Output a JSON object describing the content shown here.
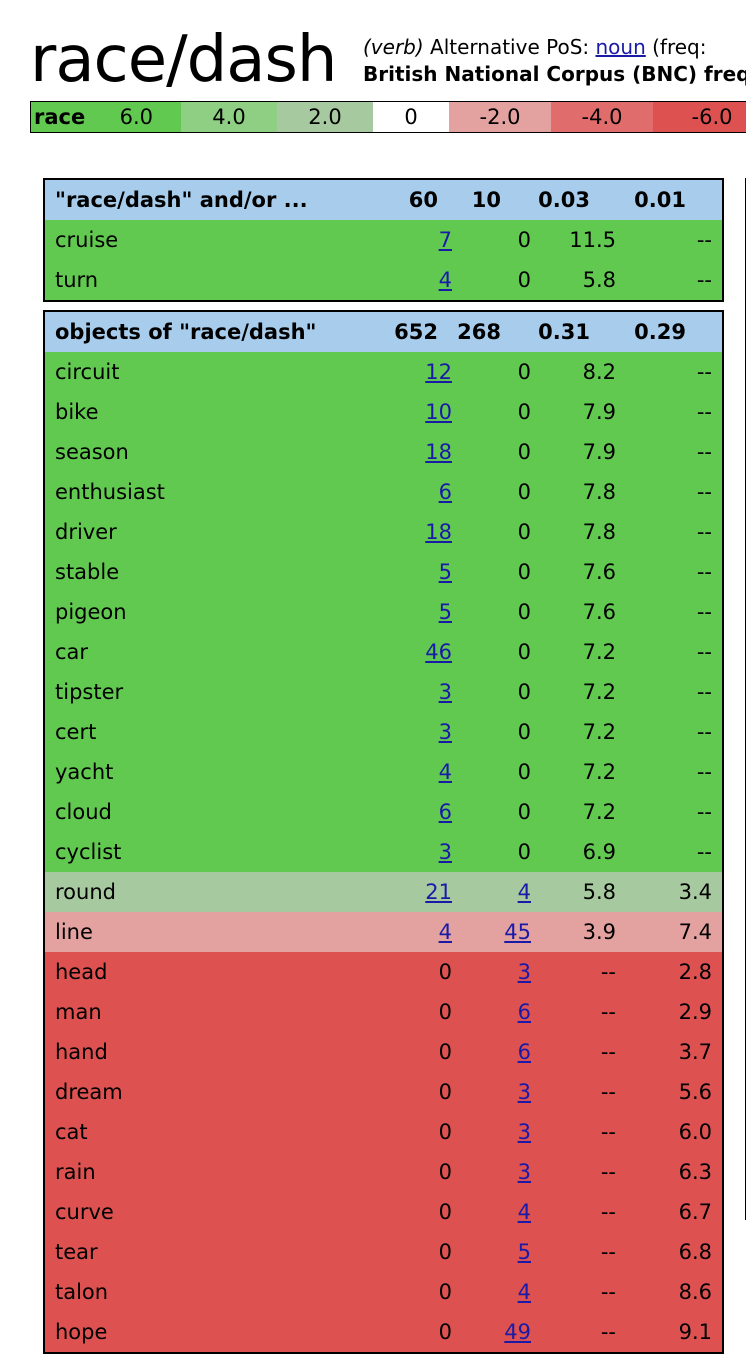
{
  "header": {
    "title": "race/dash",
    "pos_label": "(verb)",
    "alt_pos_prefix": "Alternative PoS:",
    "alt_pos_link": "noun",
    "freq_prefix": "(freq: ",
    "bnc_line": "British National Corpus (BNC) freq"
  },
  "scale": [
    {
      "label": "race",
      "value": "6.0",
      "color": "#62c950"
    },
    {
      "label": "",
      "value": "4.0",
      "color": "#8fcf83"
    },
    {
      "label": "",
      "value": "2.0",
      "color": "#a7c99f"
    },
    {
      "label": "",
      "value": "0",
      "color": "#ffffff"
    },
    {
      "label": "",
      "value": "-2.0",
      "color": "#e3a19f"
    },
    {
      "label": "",
      "value": "-4.0",
      "color": "#e06d6b"
    },
    {
      "label": "",
      "value": "-6.0",
      "color": "#dd5250"
    }
  ],
  "sections": [
    {
      "header": {
        "label": "\"race/dash\" and/or ...",
        "c1": "60",
        "c2": "10",
        "c3": "0.03",
        "c4": "0.01"
      },
      "rows": [
        {
          "word": "cruise",
          "c1": "7",
          "c1_link": true,
          "c2": "0",
          "c2_link": false,
          "c3": "11.5",
          "c4": "--",
          "shade": "g6"
        },
        {
          "word": "turn",
          "c1": "4",
          "c1_link": true,
          "c2": "0",
          "c2_link": false,
          "c3": "5.8",
          "c4": "--",
          "shade": "g6"
        }
      ]
    },
    {
      "header": {
        "label": "objects of \"race/dash\"",
        "c1": "652",
        "c2": "268",
        "c3": "0.31",
        "c4": "0.29"
      },
      "rows": [
        {
          "word": "circuit",
          "c1": "12",
          "c1_link": true,
          "c2": "0",
          "c2_link": false,
          "c3": "8.2",
          "c4": "--",
          "shade": "g6"
        },
        {
          "word": "bike",
          "c1": "10",
          "c1_link": true,
          "c2": "0",
          "c2_link": false,
          "c3": "7.9",
          "c4": "--",
          "shade": "g6"
        },
        {
          "word": "season",
          "c1": "18",
          "c1_link": true,
          "c2": "0",
          "c2_link": false,
          "c3": "7.9",
          "c4": "--",
          "shade": "g6"
        },
        {
          "word": "enthusiast",
          "c1": "6",
          "c1_link": true,
          "c2": "0",
          "c2_link": false,
          "c3": "7.8",
          "c4": "--",
          "shade": "g6"
        },
        {
          "word": "driver",
          "c1": "18",
          "c1_link": true,
          "c2": "0",
          "c2_link": false,
          "c3": "7.8",
          "c4": "--",
          "shade": "g6"
        },
        {
          "word": "stable",
          "c1": "5",
          "c1_link": true,
          "c2": "0",
          "c2_link": false,
          "c3": "7.6",
          "c4": "--",
          "shade": "g6"
        },
        {
          "word": "pigeon",
          "c1": "5",
          "c1_link": true,
          "c2": "0",
          "c2_link": false,
          "c3": "7.6",
          "c4": "--",
          "shade": "g6"
        },
        {
          "word": "car",
          "c1": "46",
          "c1_link": true,
          "c2": "0",
          "c2_link": false,
          "c3": "7.2",
          "c4": "--",
          "shade": "g6"
        },
        {
          "word": "tipster",
          "c1": "3",
          "c1_link": true,
          "c2": "0",
          "c2_link": false,
          "c3": "7.2",
          "c4": "--",
          "shade": "g6"
        },
        {
          "word": "cert",
          "c1": "3",
          "c1_link": true,
          "c2": "0",
          "c2_link": false,
          "c3": "7.2",
          "c4": "--",
          "shade": "g6"
        },
        {
          "word": "yacht",
          "c1": "4",
          "c1_link": true,
          "c2": "0",
          "c2_link": false,
          "c3": "7.2",
          "c4": "--",
          "shade": "g6"
        },
        {
          "word": "cloud",
          "c1": "6",
          "c1_link": true,
          "c2": "0",
          "c2_link": false,
          "c3": "7.2",
          "c4": "--",
          "shade": "g6"
        },
        {
          "word": "cyclist",
          "c1": "3",
          "c1_link": true,
          "c2": "0",
          "c2_link": false,
          "c3": "6.9",
          "c4": "--",
          "shade": "g6"
        },
        {
          "word": "round",
          "c1": "21",
          "c1_link": true,
          "c2": "4",
          "c2_link": true,
          "c3": "5.8",
          "c4": "3.4",
          "shade": "g2"
        },
        {
          "word": "line",
          "c1": "4",
          "c1_link": true,
          "c2": "45",
          "c2_link": true,
          "c3": "3.9",
          "c4": "7.4",
          "shade": "r2"
        },
        {
          "word": "head",
          "c1": "0",
          "c1_link": false,
          "c2": "3",
          "c2_link": true,
          "c3": "--",
          "c4": "2.8",
          "shade": "r4"
        },
        {
          "word": "man",
          "c1": "0",
          "c1_link": false,
          "c2": "6",
          "c2_link": true,
          "c3": "--",
          "c4": "2.9",
          "shade": "r4"
        },
        {
          "word": "hand",
          "c1": "0",
          "c1_link": false,
          "c2": "6",
          "c2_link": true,
          "c3": "--",
          "c4": "3.7",
          "shade": "r4"
        },
        {
          "word": "dream",
          "c1": "0",
          "c1_link": false,
          "c2": "3",
          "c2_link": true,
          "c3": "--",
          "c4": "5.6",
          "shade": "r4"
        },
        {
          "word": "cat",
          "c1": "0",
          "c1_link": false,
          "c2": "3",
          "c2_link": true,
          "c3": "--",
          "c4": "6.0",
          "shade": "r4"
        },
        {
          "word": "rain",
          "c1": "0",
          "c1_link": false,
          "c2": "3",
          "c2_link": true,
          "c3": "--",
          "c4": "6.3",
          "shade": "r4"
        },
        {
          "word": "curve",
          "c1": "0",
          "c1_link": false,
          "c2": "4",
          "c2_link": true,
          "c3": "--",
          "c4": "6.7",
          "shade": "r4"
        },
        {
          "word": "tear",
          "c1": "0",
          "c1_link": false,
          "c2": "5",
          "c2_link": true,
          "c3": "--",
          "c4": "6.8",
          "shade": "r4"
        },
        {
          "word": "talon",
          "c1": "0",
          "c1_link": false,
          "c2": "4",
          "c2_link": true,
          "c3": "--",
          "c4": "8.6",
          "shade": "r4"
        },
        {
          "word": "hope",
          "c1": "0",
          "c1_link": false,
          "c2": "49",
          "c2_link": true,
          "c3": "--",
          "c4": "9.1",
          "shade": "r4"
        }
      ]
    }
  ]
}
